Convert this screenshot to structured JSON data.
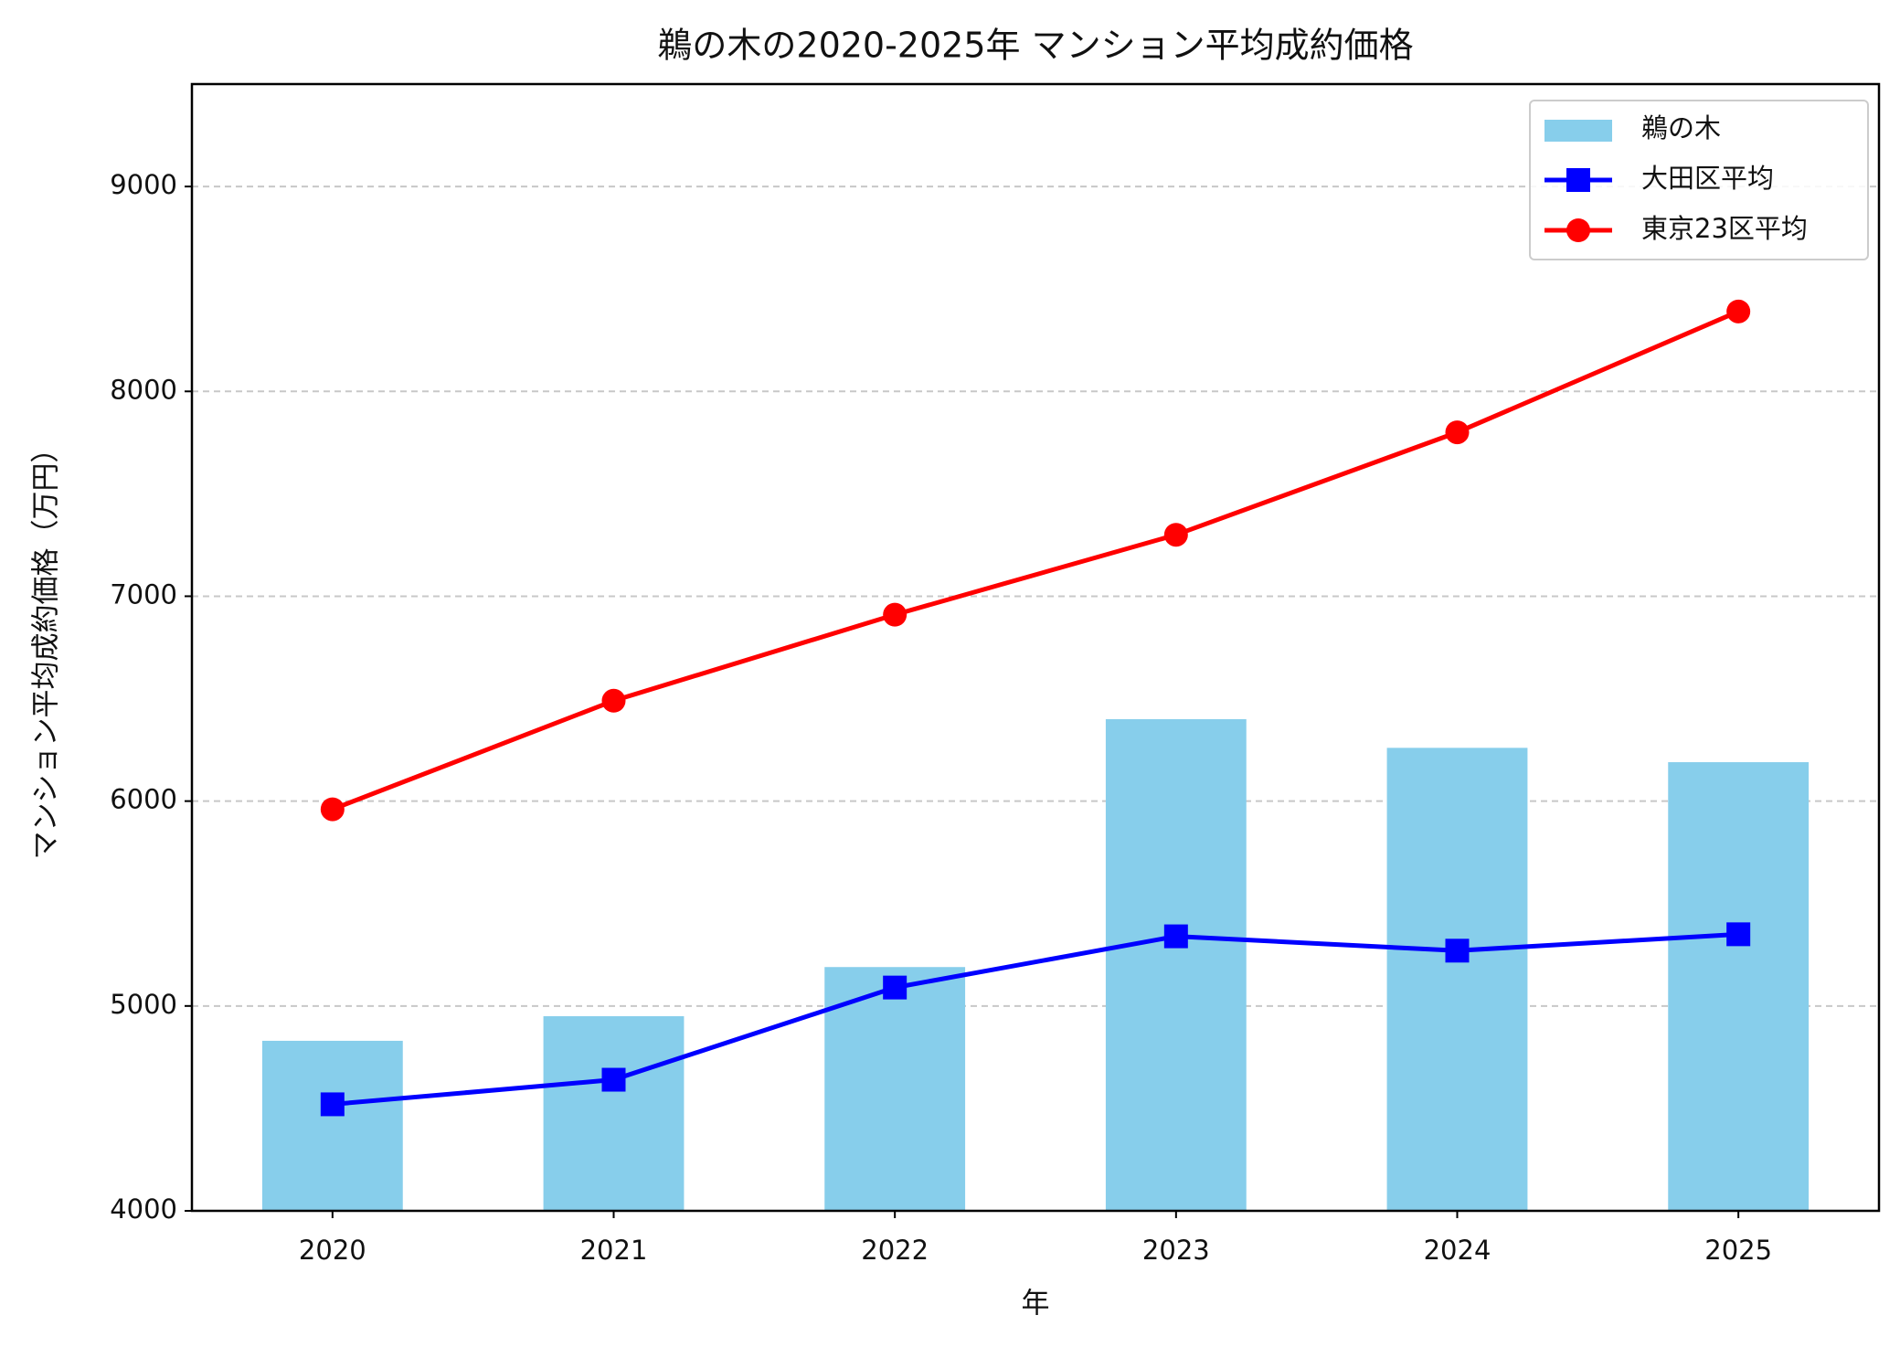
{
  "chart_data": {
    "type": "combo",
    "title": "鵜の木の2020-2025年 マンション平均成約価格",
    "x_label": "年",
    "y_label": "マンション平均成約価格（万円）",
    "categories": [
      "2020",
      "2021",
      "2022",
      "2023",
      "2024",
      "2025"
    ],
    "series": [
      {
        "name": "鵜の木",
        "type": "bar",
        "color": "#87ceeb",
        "values": [
          4830,
          4950,
          5190,
          6400,
          6260,
          6190
        ]
      },
      {
        "name": "大田区平均",
        "type": "line",
        "marker": "square",
        "color": "#0000ff",
        "values": [
          4520,
          4640,
          5090,
          5340,
          5270,
          5350
        ]
      },
      {
        "name": "東京23区平均",
        "type": "line",
        "marker": "circle",
        "color": "#ff0000",
        "values": [
          5960,
          6490,
          6910,
          7300,
          7800,
          8390
        ]
      }
    ],
    "ylim": [
      4000,
      9500
    ],
    "yticks": [
      4000,
      5000,
      6000,
      7000,
      8000,
      9000
    ],
    "grid": true,
    "legend": "upper-right"
  }
}
